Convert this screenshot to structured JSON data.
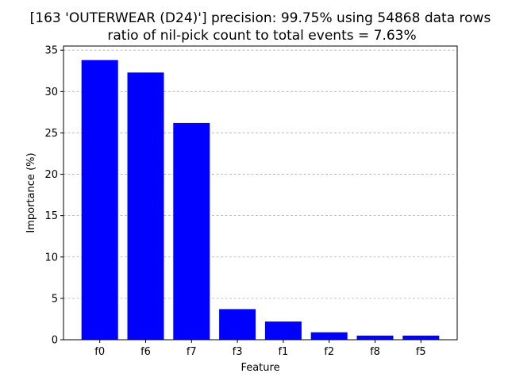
{
  "chart_data": {
    "type": "bar",
    "title": "[163 'OUTERWEAR (D24)'] precision: 99.75% using 54868 data rows",
    "subtitle": "ratio of nil-pick count to total events = 7.63%",
    "xlabel": "Feature",
    "ylabel": "Importance (%)",
    "categories": [
      "f0",
      "f6",
      "f7",
      "f3",
      "f1",
      "f2",
      "f8",
      "f5"
    ],
    "values": [
      33.8,
      32.3,
      26.2,
      3.7,
      2.2,
      0.9,
      0.5,
      0.5
    ],
    "ylim": [
      0,
      35.5
    ],
    "yticks": [
      0,
      5,
      10,
      15,
      20,
      25,
      30,
      35
    ],
    "grid": "y-dashed",
    "bar_color": "#0000ff",
    "grid_color": "#b0b0b0"
  }
}
